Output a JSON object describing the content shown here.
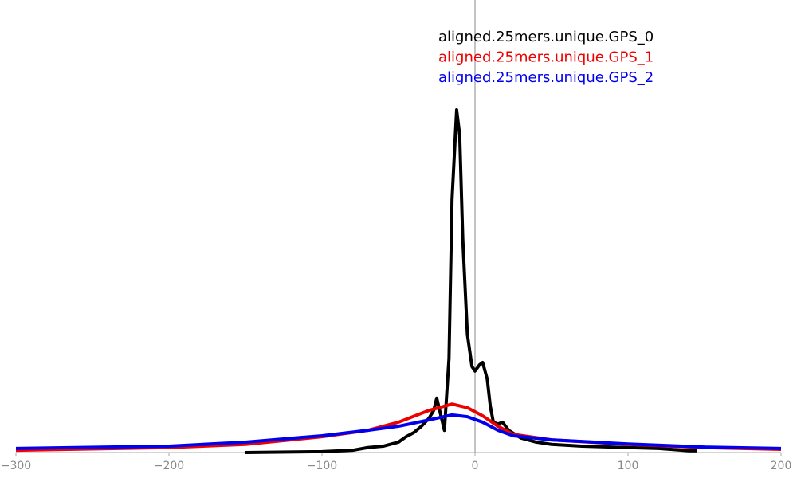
{
  "chart_data": {
    "type": "line",
    "xlim": [
      -300,
      200
    ],
    "xticks": [
      {
        "value": -300,
        "label": "−300"
      },
      {
        "value": -200,
        "label": "−200"
      },
      {
        "value": -100,
        "label": "−100"
      },
      0,
      100,
      200
    ],
    "ylim": [
      0,
      100
    ],
    "legend": "top-right",
    "series": [
      {
        "name": "aligned.25mers.unique.GPS_0",
        "color": "#000000",
        "x": [
          -150,
          -100,
          -80,
          -70,
          -60,
          -50,
          -45,
          -40,
          -35,
          -30,
          -27,
          -25,
          -20,
          -17,
          -15,
          -12,
          -10,
          -8,
          -5,
          -2,
          0,
          3,
          5,
          8,
          10,
          12,
          15,
          18,
          22,
          30,
          40,
          50,
          70,
          100,
          120,
          140,
          145
        ],
        "values": [
          0,
          0.2,
          0.5,
          1.1,
          1.4,
          2.3,
          3.5,
          4.4,
          5.8,
          7.6,
          9.3,
          12.0,
          4.9,
          20.8,
          56.0,
          75.7,
          70.1,
          47.2,
          26.1,
          19.0,
          18.0,
          19.4,
          19.9,
          16.2,
          10.2,
          6.7,
          6.3,
          6.7,
          4.9,
          3.2,
          2.3,
          1.8,
          1.4,
          1.1,
          0.9,
          0.4,
          0.4
        ]
      },
      {
        "name": "aligned.25mers.unique.GPS_1",
        "color": "#ee0000",
        "x": [
          -300,
          -200,
          -150,
          -100,
          -70,
          -50,
          -30,
          -15,
          -5,
          5,
          15,
          25,
          50,
          100,
          150,
          200
        ],
        "values": [
          0.5,
          1.1,
          1.8,
          3.5,
          4.9,
          6.7,
          9.3,
          10.7,
          9.9,
          8.1,
          5.8,
          4.0,
          2.8,
          1.8,
          1.1,
          0.7
        ]
      },
      {
        "name": "aligned.25mers.unique.GPS_2",
        "color": "#0000ee",
        "x": [
          -300,
          -200,
          -150,
          -100,
          -70,
          -50,
          -30,
          -15,
          -5,
          5,
          15,
          25,
          50,
          100,
          150,
          200
        ],
        "values": [
          0.9,
          1.4,
          2.3,
          3.7,
          4.9,
          5.8,
          7.2,
          8.3,
          7.9,
          6.7,
          4.9,
          3.7,
          2.8,
          1.9,
          1.2,
          0.9
        ]
      }
    ]
  }
}
